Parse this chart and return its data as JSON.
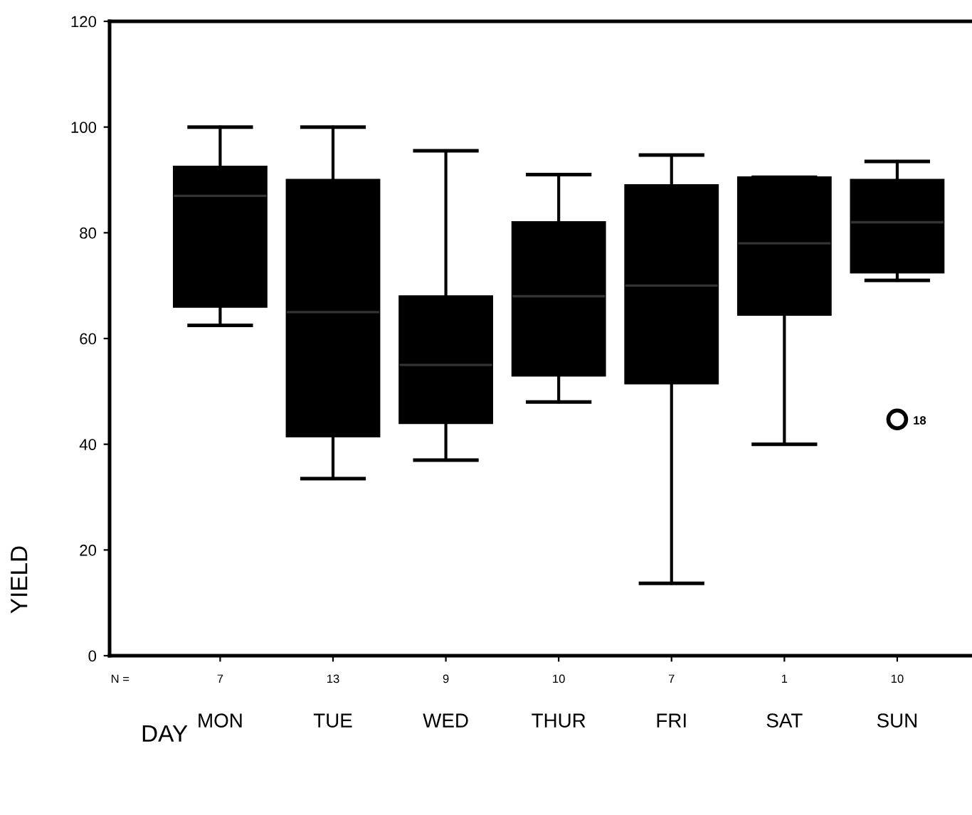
{
  "chart_data": {
    "type": "box",
    "xlabel": "DAY",
    "ylabel": "YIELD",
    "categories": [
      "MON",
      "TUE",
      "WED",
      "THUR",
      "FRI",
      "SAT",
      "SUN"
    ],
    "boxes": [
      {
        "low": 62.5,
        "q1": 66,
        "median": 87,
        "q3": 92.5,
        "high": 100
      },
      {
        "low": 33.5,
        "q1": 41.5,
        "median": 65,
        "q3": 90,
        "high": 100
      },
      {
        "low": 37,
        "q1": 44,
        "median": 55,
        "q3": 68,
        "high": 95.5
      },
      {
        "low": 48,
        "q1": 53,
        "median": 68,
        "q3": 82,
        "high": 91
      },
      {
        "low": 13.7,
        "q1": 51.5,
        "median": 70,
        "q3": 89,
        "high": 94.7
      },
      {
        "low": 40,
        "q1": 64.5,
        "median": 78,
        "q3": 90.5,
        "high": 90.5
      },
      {
        "low": 71,
        "q1": 72.5,
        "median": 82,
        "q3": 90,
        "high": 93.5,
        "outliers": [
          44.7
        ]
      }
    ],
    "color": "#000000",
    "ylim": [
      0,
      120
    ],
    "yticks": [
      0,
      20,
      40,
      60,
      80,
      100,
      120
    ],
    "grid": false,
    "annotations": [
      "N =",
      "7",
      "13",
      "9",
      "10",
      "7",
      "1",
      "10",
      "18"
    ]
  }
}
